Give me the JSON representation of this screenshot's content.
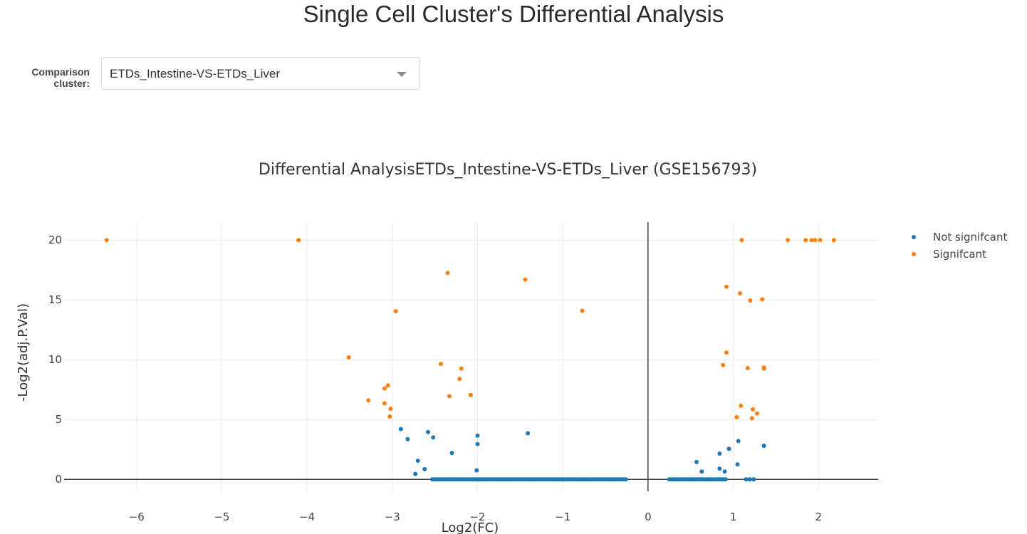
{
  "page": {
    "title": "Single Cell Cluster's Differential Analysis"
  },
  "control": {
    "label_line1": "Comparison",
    "label_line2": "cluster:",
    "selected": "ETDs_Intestine-VS-ETDs_Liver"
  },
  "chart_data": {
    "type": "scatter",
    "title": "Differential AnalysisETDs_Intestine-VS-ETDs_Liver (GSE156793)",
    "xlabel": "Log2(FC)",
    "ylabel": "-Log2(adj.P.Val)",
    "xlim": [
      -6.85,
      2.7
    ],
    "ylim": [
      -1.0,
      21.5
    ],
    "x_ticks": [
      -6,
      -5,
      -4,
      -3,
      -2,
      -1,
      0,
      1,
      2
    ],
    "y_ticks": [
      0,
      5,
      10,
      15,
      20
    ],
    "grid": true,
    "legend_position": "top-right",
    "colors": {
      "not_significant": "#1f77b4",
      "significant": "#ff7f0e"
    },
    "series": [
      {
        "name": "Not signifcant",
        "color": "#1f77b4",
        "points": [
          [
            -2.9,
            4.2
          ],
          [
            -2.82,
            3.35
          ],
          [
            -2.58,
            3.95
          ],
          [
            -2.52,
            3.5
          ],
          [
            -2.7,
            1.55
          ],
          [
            -2.62,
            0.85
          ],
          [
            -2.73,
            0.45
          ],
          [
            -2.3,
            2.2
          ],
          [
            -2.0,
            3.65
          ],
          [
            -2.0,
            2.95
          ],
          [
            -2.01,
            0.75
          ],
          [
            -1.41,
            3.85
          ],
          [
            0.57,
            1.45
          ],
          [
            0.63,
            0.65
          ],
          [
            0.84,
            2.15
          ],
          [
            0.84,
            0.9
          ],
          [
            0.9,
            0.65
          ],
          [
            0.95,
            2.55
          ],
          [
            1.06,
            3.2
          ],
          [
            1.05,
            1.25
          ],
          [
            1.36,
            2.8
          ],
          [
            1.19,
            0.0
          ],
          [
            1.24,
            0.0
          ]
        ],
        "baseline": {
          "y": 0,
          "ranges": [
            [
              -2.53,
              -0.26
            ],
            [
              0.25,
              0.91
            ],
            [
              1.15,
              1.24
            ]
          ],
          "count_per_range": [
            110,
            34,
            3
          ]
        }
      },
      {
        "name": "Signifcant",
        "color": "#ff7f0e",
        "points": [
          [
            -6.35,
            20.0
          ],
          [
            -4.1,
            20.0
          ],
          [
            -2.35,
            17.25
          ],
          [
            -1.44,
            16.7
          ],
          [
            -2.96,
            14.05
          ],
          [
            -0.77,
            14.1
          ],
          [
            -3.51,
            10.2
          ],
          [
            -2.43,
            9.65
          ],
          [
            -2.19,
            9.25
          ],
          [
            -2.21,
            8.4
          ],
          [
            -2.08,
            7.05
          ],
          [
            -2.33,
            6.95
          ],
          [
            -3.05,
            7.85
          ],
          [
            -3.09,
            7.6
          ],
          [
            -3.28,
            6.6
          ],
          [
            -3.09,
            6.35
          ],
          [
            -3.02,
            5.9
          ],
          [
            -3.03,
            5.25
          ],
          [
            1.1,
            20.0
          ],
          [
            1.64,
            20.0
          ],
          [
            1.85,
            20.0
          ],
          [
            1.92,
            20.0
          ],
          [
            1.96,
            20.0
          ],
          [
            2.02,
            20.0
          ],
          [
            2.18,
            20.0
          ],
          [
            0.92,
            16.1
          ],
          [
            1.08,
            15.55
          ],
          [
            1.2,
            14.95
          ],
          [
            1.34,
            15.05
          ],
          [
            0.92,
            10.6
          ],
          [
            0.88,
            9.55
          ],
          [
            1.17,
            9.3
          ],
          [
            1.36,
            9.35
          ],
          [
            1.36,
            9.25
          ],
          [
            1.09,
            6.15
          ],
          [
            1.23,
            5.85
          ],
          [
            1.28,
            5.5
          ],
          [
            1.04,
            5.2
          ],
          [
            1.22,
            5.1
          ]
        ]
      }
    ]
  }
}
